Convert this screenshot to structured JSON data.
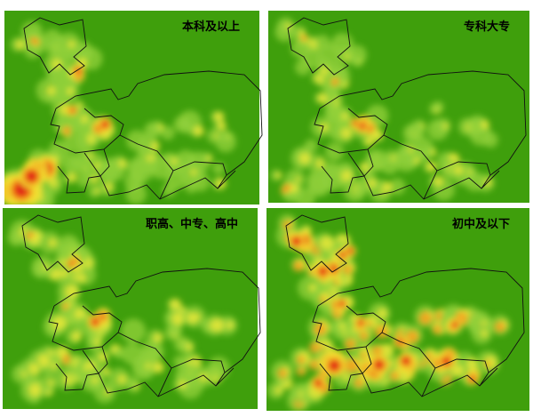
{
  "panels": [
    {
      "title": "本科及以上"
    },
    {
      "title": "专科大专"
    },
    {
      "title": "职高、中专、高中"
    },
    {
      "title": "初中及以下"
    }
  ]
}
